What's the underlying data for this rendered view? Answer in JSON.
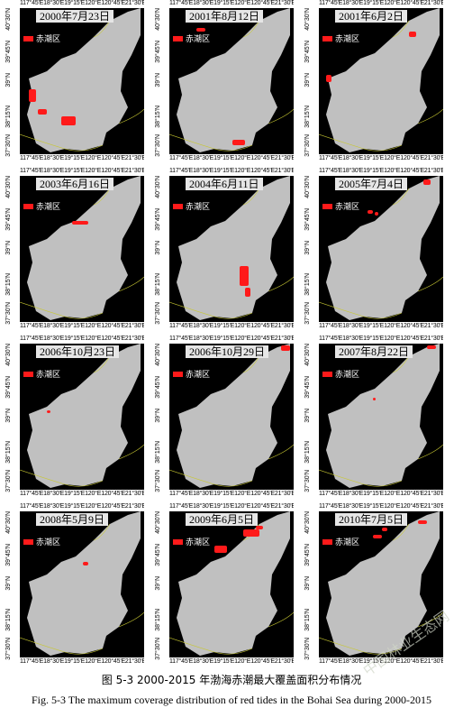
{
  "figure": {
    "top_axis": "117°45'E18°30'E19°15'E120°E120°45'E21°30'E",
    "bottom_axis": "117°45'E18°30'E19°15'E120°E120°45'E21°30'E",
    "lat_labels": [
      "40°30'N",
      "39°45'N",
      "39°N",
      "38°15'N",
      "37°30'N"
    ],
    "legend_label": "赤潮区",
    "colors": {
      "sea": "#c0c0c0",
      "land": "#000000",
      "red_tide": "#ff1a1a",
      "coast": "#c8c832"
    },
    "panels": [
      {
        "date": "2000年7月23日"
      },
      {
        "date": "2001年8月12日"
      },
      {
        "date": "2001年6月2日"
      },
      {
        "date": "2003年6月16日"
      },
      {
        "date": "2004年6月11日"
      },
      {
        "date": "2005年7月4日"
      },
      {
        "date": "2006年10月23日"
      },
      {
        "date": "2006年10月29日"
      },
      {
        "date": "2007年8月22日"
      },
      {
        "date": "2008年5月9日"
      },
      {
        "date": "2009年6月5日"
      },
      {
        "date": "2010年7月5日"
      }
    ],
    "caption_cn": "图 5-3 2000-2015 年渤海赤潮最大覆盖面积分布情况",
    "caption_en": "Fig. 5-3 The maximum coverage distribution of red tides in the Bohai Sea during 2000-2015"
  },
  "watermark": "中国林业生态网"
}
